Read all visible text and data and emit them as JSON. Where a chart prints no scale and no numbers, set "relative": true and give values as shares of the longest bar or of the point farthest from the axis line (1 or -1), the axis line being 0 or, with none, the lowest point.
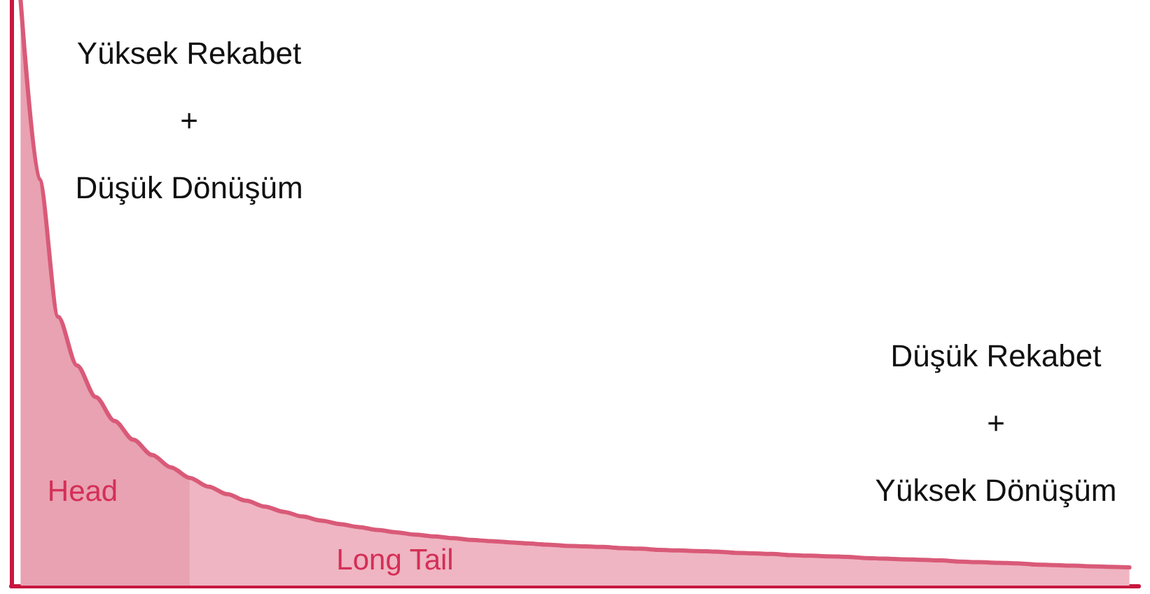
{
  "chart_data": {
    "type": "area",
    "relative": true,
    "tick_labels": false,
    "grid": false,
    "legend": false,
    "marker": "none",
    "categories": [
      null,
      null,
      null,
      null,
      null,
      null,
      null,
      null,
      null,
      null,
      null,
      null,
      null,
      null,
      null,
      null,
      null,
      null,
      null,
      null,
      null,
      null,
      null,
      null,
      null,
      null,
      null,
      null,
      null,
      null,
      null,
      null,
      null,
      null,
      null,
      null,
      null,
      null,
      null,
      null,
      null,
      null,
      null,
      null,
      null,
      null,
      null,
      null,
      null,
      null,
      null,
      null,
      null,
      null,
      null,
      null,
      null,
      null,
      null,
      null
    ],
    "series": [
      {
        "name": "Head",
        "color": "#e8a2b2",
        "values": [
          1.0,
          0.694,
          0.459,
          0.376,
          0.322,
          0.281,
          0.249,
          0.223,
          0.202,
          0.184,
          null,
          null,
          null,
          null,
          null,
          null,
          null,
          null,
          null,
          null,
          null,
          null,
          null,
          null,
          null,
          null,
          null,
          null,
          null,
          null,
          null,
          null,
          null,
          null,
          null,
          null,
          null,
          null,
          null,
          null,
          null,
          null,
          null,
          null,
          null,
          null,
          null,
          null,
          null,
          null,
          null,
          null,
          null,
          null,
          null,
          null,
          null,
          null,
          null,
          null
        ]
      },
      {
        "name": "Long Tail",
        "color": "#efb5c2",
        "values": [
          null,
          null,
          null,
          null,
          null,
          null,
          null,
          null,
          null,
          0.184,
          0.169,
          0.156,
          0.145,
          0.135,
          0.126,
          0.118,
          0.111,
          0.105,
          0.1,
          0.095,
          0.091,
          0.087,
          0.084,
          0.081,
          0.078,
          0.076,
          0.074,
          0.072,
          0.07,
          0.068,
          0.067,
          0.066,
          0.064,
          0.063,
          0.061,
          0.06,
          0.059,
          0.058,
          0.056,
          0.055,
          0.054,
          0.052,
          0.051,
          0.05,
          0.049,
          0.047,
          0.046,
          0.045,
          0.044,
          0.043,
          0.041,
          0.04,
          0.039,
          0.038,
          0.036,
          0.035,
          0.034,
          0.033,
          0.032,
          0.031
        ]
      },
      {
        "type": "line",
        "color": "#d95a78",
        "values": [
          1.0,
          0.694,
          0.459,
          0.376,
          0.322,
          0.281,
          0.249,
          0.223,
          0.202,
          0.184,
          0.169,
          0.156,
          0.145,
          0.135,
          0.126,
          0.118,
          0.111,
          0.105,
          0.1,
          0.095,
          0.091,
          0.087,
          0.084,
          0.081,
          0.078,
          0.076,
          0.074,
          0.072,
          0.07,
          0.068,
          0.067,
          0.066,
          0.064,
          0.063,
          0.061,
          0.06,
          0.059,
          0.058,
          0.056,
          0.055,
          0.054,
          0.052,
          0.051,
          0.05,
          0.049,
          0.047,
          0.046,
          0.045,
          0.044,
          0.043,
          0.041,
          0.04,
          0.039,
          0.038,
          0.036,
          0.035,
          0.034,
          0.033,
          0.032,
          0.031
        ]
      }
    ],
    "annotations": [
      "Yüksek Rekabet\n+\nDüşük Dönüşüm",
      "Düşük Rekabet\n+\nYüksek Dönüşüm"
    ]
  }
}
